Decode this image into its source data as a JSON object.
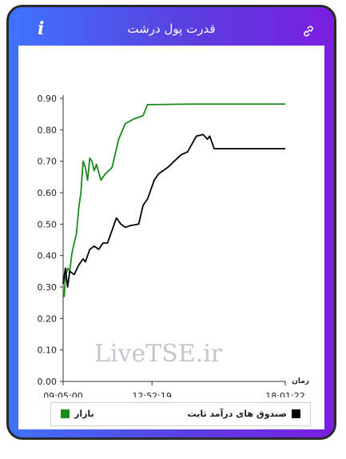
{
  "header": {
    "title": "قدرت پول درشت",
    "info_icon": "i"
  },
  "watermark": "LiveTSE.ir",
  "colors": {
    "market": "#1a8a1a",
    "fixed_income": "#000000"
  },
  "chart_data": {
    "type": "line",
    "title": "قدرت پول درشت",
    "xlabel": "زمان",
    "ylabel": "",
    "xlim": [
      0,
      1
    ],
    "ylim": [
      0,
      0.9
    ],
    "yticks": [
      0.0,
      0.1,
      0.2,
      0.3,
      0.4,
      0.5,
      0.6,
      0.7,
      0.8,
      0.9
    ],
    "ytick_labels": [
      "0.00",
      "0.10",
      "0.20",
      "0.30",
      "0.40",
      "0.50",
      "0.60",
      "0.70",
      "0.80",
      "0.90"
    ],
    "xticks": [
      0,
      0.4,
      1
    ],
    "xtick_labels": [
      "09:05:00",
      "12:52:19",
      "18:01:22"
    ],
    "grid": false,
    "legend": "bottom",
    "series": [
      {
        "name": "بازار",
        "color": "#1a8a1a",
        "points": [
          [
            0.0,
            0.29
          ],
          [
            0.005,
            0.27
          ],
          [
            0.01,
            0.33
          ],
          [
            0.02,
            0.36
          ],
          [
            0.03,
            0.35
          ],
          [
            0.04,
            0.41
          ],
          [
            0.05,
            0.44
          ],
          [
            0.06,
            0.47
          ],
          [
            0.07,
            0.55
          ],
          [
            0.08,
            0.6
          ],
          [
            0.09,
            0.7
          ],
          [
            0.1,
            0.68
          ],
          [
            0.11,
            0.64
          ],
          [
            0.12,
            0.71
          ],
          [
            0.13,
            0.7
          ],
          [
            0.14,
            0.67
          ],
          [
            0.15,
            0.69
          ],
          [
            0.17,
            0.64
          ],
          [
            0.19,
            0.66
          ],
          [
            0.22,
            0.68
          ],
          [
            0.25,
            0.77
          ],
          [
            0.28,
            0.82
          ],
          [
            0.32,
            0.835
          ],
          [
            0.36,
            0.845
          ],
          [
            0.38,
            0.88
          ],
          [
            0.6,
            0.882
          ],
          [
            1.0,
            0.882
          ]
        ]
      },
      {
        "name": "صندوق های درآمد ثابت",
        "color": "#000000",
        "points": [
          [
            0.0,
            0.31
          ],
          [
            0.01,
            0.36
          ],
          [
            0.02,
            0.3
          ],
          [
            0.03,
            0.35
          ],
          [
            0.05,
            0.34
          ],
          [
            0.07,
            0.37
          ],
          [
            0.09,
            0.39
          ],
          [
            0.1,
            0.38
          ],
          [
            0.12,
            0.42
          ],
          [
            0.14,
            0.43
          ],
          [
            0.16,
            0.42
          ],
          [
            0.18,
            0.44
          ],
          [
            0.2,
            0.44
          ],
          [
            0.22,
            0.48
          ],
          [
            0.24,
            0.52
          ],
          [
            0.26,
            0.5
          ],
          [
            0.28,
            0.49
          ],
          [
            0.3,
            0.495
          ],
          [
            0.34,
            0.5
          ],
          [
            0.36,
            0.56
          ],
          [
            0.38,
            0.58
          ],
          [
            0.41,
            0.64
          ],
          [
            0.43,
            0.66
          ],
          [
            0.47,
            0.68
          ],
          [
            0.5,
            0.7
          ],
          [
            0.53,
            0.72
          ],
          [
            0.56,
            0.73
          ],
          [
            0.6,
            0.78
          ],
          [
            0.63,
            0.785
          ],
          [
            0.65,
            0.77
          ],
          [
            0.66,
            0.78
          ],
          [
            0.68,
            0.74
          ],
          [
            0.7,
            0.74
          ],
          [
            1.0,
            0.74
          ]
        ]
      }
    ]
  }
}
